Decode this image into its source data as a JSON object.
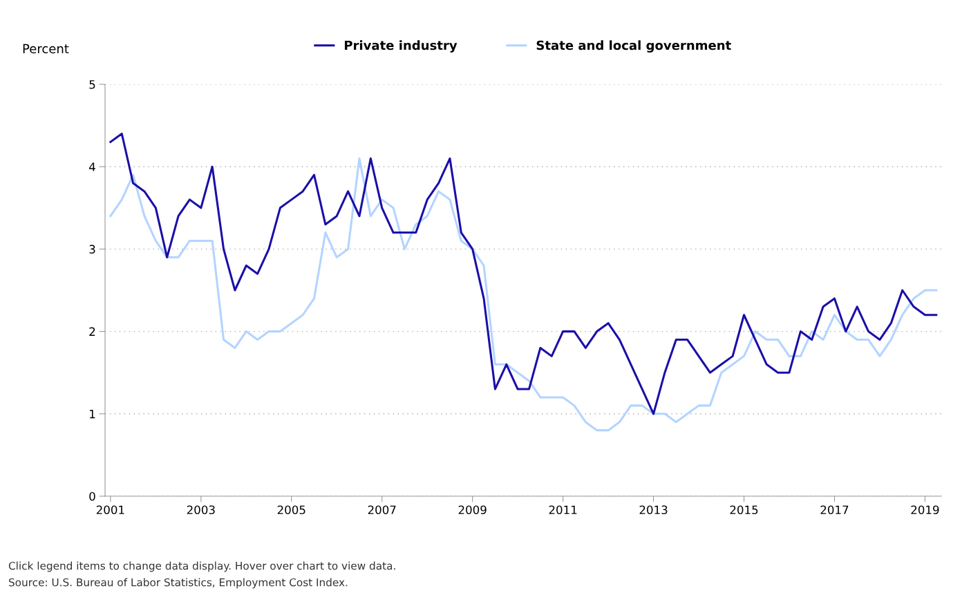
{
  "chart_data": {
    "type": "line",
    "ylabel": "Percent",
    "x": [
      2001,
      2001.25,
      2001.5,
      2001.75,
      2002,
      2002.25,
      2002.5,
      2002.75,
      2003,
      2003.25,
      2003.5,
      2003.75,
      2004,
      2004.25,
      2004.5,
      2004.75,
      2005,
      2005.25,
      2005.5,
      2005.75,
      2006,
      2006.25,
      2006.5,
      2006.75,
      2007,
      2007.25,
      2007.5,
      2007.75,
      2008,
      2008.25,
      2008.5,
      2008.75,
      2009,
      2009.25,
      2009.5,
      2009.75,
      2010,
      2010.25,
      2010.5,
      2010.75,
      2011,
      2011.25,
      2011.5,
      2011.75,
      2012,
      2012.25,
      2012.5,
      2012.75,
      2013,
      2013.25,
      2013.5,
      2013.75,
      2014,
      2014.25,
      2014.5,
      2014.75,
      2015,
      2015.25,
      2015.5,
      2015.75,
      2016,
      2016.25,
      2016.5,
      2016.75,
      2017,
      2017.25,
      2017.5,
      2017.75,
      2018,
      2018.25,
      2018.5,
      2018.75,
      2019,
      2019.25
    ],
    "series": [
      {
        "name": "Private industry",
        "color": "#1a0fa8",
        "values": [
          4.3,
          4.4,
          3.8,
          3.7,
          3.5,
          2.9,
          3.4,
          3.6,
          3.5,
          4.0,
          3.0,
          2.5,
          2.8,
          2.7,
          3.0,
          3.5,
          3.6,
          3.7,
          3.9,
          3.3,
          3.4,
          3.7,
          3.4,
          4.1,
          3.5,
          3.2,
          3.2,
          3.2,
          3.6,
          3.8,
          4.1,
          3.2,
          3.0,
          2.4,
          1.3,
          1.6,
          1.3,
          1.3,
          1.8,
          1.7,
          2.0,
          2.0,
          1.8,
          2.0,
          2.1,
          1.9,
          1.6,
          1.3,
          1.0,
          1.5,
          1.9,
          1.9,
          1.7,
          1.5,
          1.6,
          1.7,
          2.2,
          1.9,
          1.6,
          1.5,
          1.5,
          2.0,
          1.9,
          2.3,
          2.4,
          2.0,
          2.3,
          2.0,
          1.9,
          2.1,
          2.5,
          2.3,
          2.2,
          2.2
        ]
      },
      {
        "name": "State and local government",
        "color": "#b3d4ff",
        "values": [
          3.4,
          3.6,
          3.9,
          3.4,
          3.1,
          2.9,
          2.9,
          3.1,
          3.1,
          3.1,
          1.9,
          1.8,
          2.0,
          1.9,
          2.0,
          2.0,
          2.1,
          2.2,
          2.4,
          3.2,
          2.9,
          3.0,
          4.1,
          3.4,
          3.6,
          3.5,
          3.0,
          3.3,
          3.4,
          3.7,
          3.6,
          3.1,
          3.0,
          2.8,
          1.6,
          1.6,
          1.5,
          1.4,
          1.2,
          1.2,
          1.2,
          1.1,
          0.9,
          0.8,
          0.8,
          0.9,
          1.1,
          1.1,
          1.0,
          1.0,
          0.9,
          1.0,
          1.1,
          1.1,
          1.5,
          1.6,
          1.7,
          2.0,
          1.9,
          1.9,
          1.7,
          1.7,
          2.0,
          1.9,
          2.2,
          2.0,
          1.9,
          1.9,
          1.7,
          1.9,
          2.2,
          2.4,
          2.5,
          2.5
        ]
      }
    ],
    "xlim": [
      2000.88,
      2019.36
    ],
    "xticks": [
      2001,
      2003,
      2005,
      2007,
      2009,
      2011,
      2013,
      2015,
      2017,
      2019
    ],
    "ylim": [
      0,
      5
    ],
    "yticks": [
      0,
      1,
      2,
      3,
      4,
      5
    ],
    "grid": "y",
    "legend": "top",
    "marker": "none",
    "line_style": "solid",
    "annotations": [
      "Click legend items to change data display. Hover over chart to view data.",
      "Source: U.S. Bureau of Labor Statistics, Employment Cost Index."
    ]
  }
}
